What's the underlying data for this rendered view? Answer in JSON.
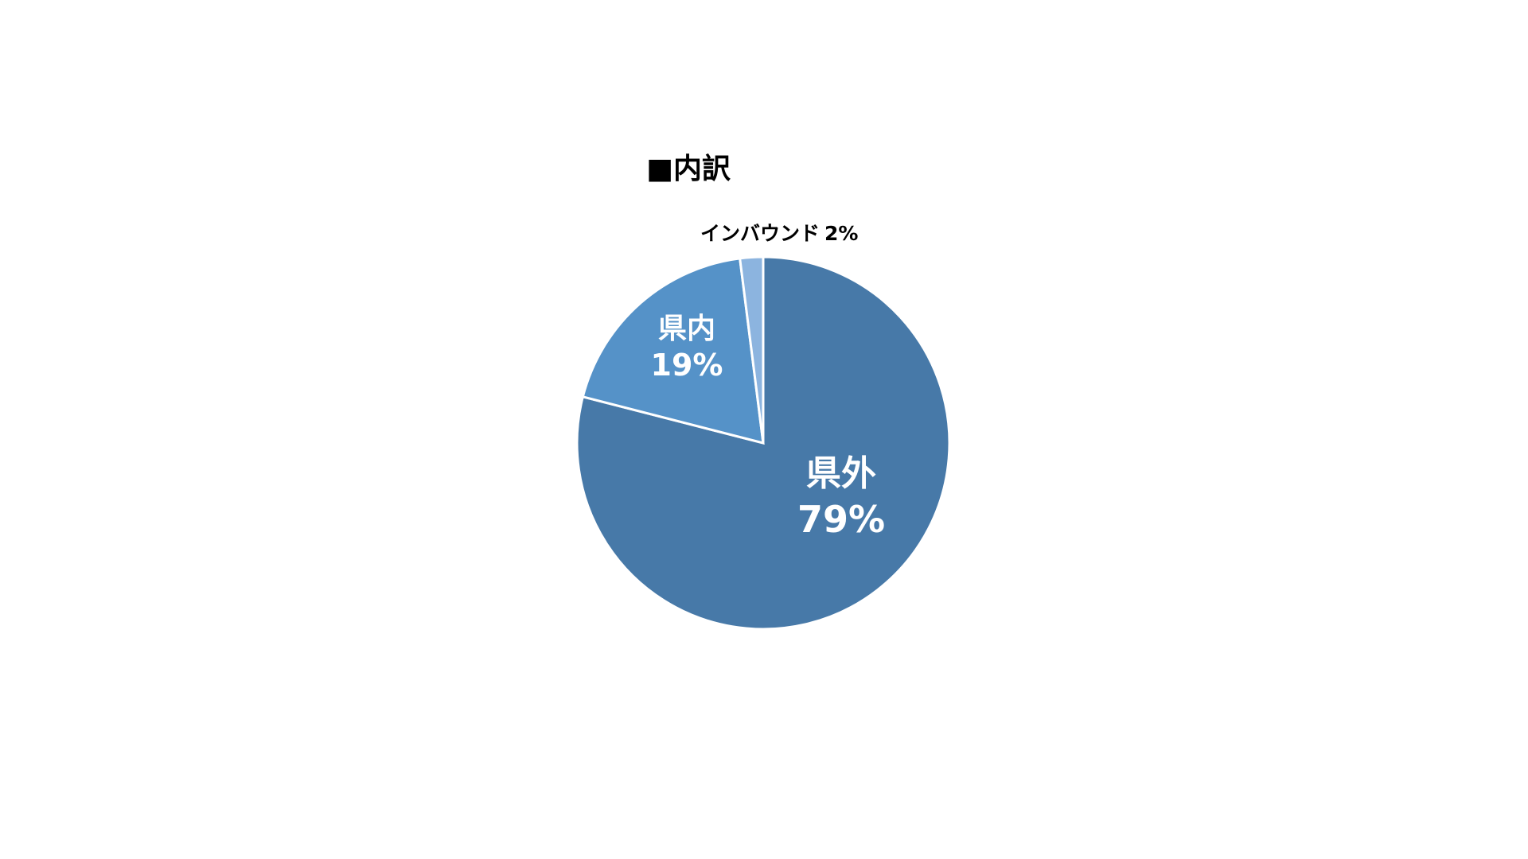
{
  "chart_data": {
    "type": "pie",
    "title": "■内訳",
    "start": "12 o'clock, clockwise",
    "slices": [
      {
        "label": "県外",
        "value": 79,
        "value_label": "79%",
        "color": "#4779A8",
        "label_position": "inside"
      },
      {
        "label": "県内",
        "value": 19,
        "value_label": "19%",
        "color": "#5592C8",
        "label_position": "inside"
      },
      {
        "label": "インバウンド",
        "value": 2,
        "value_label": "2%",
        "color": "#8CB4DF",
        "label_position": "outside"
      }
    ]
  }
}
